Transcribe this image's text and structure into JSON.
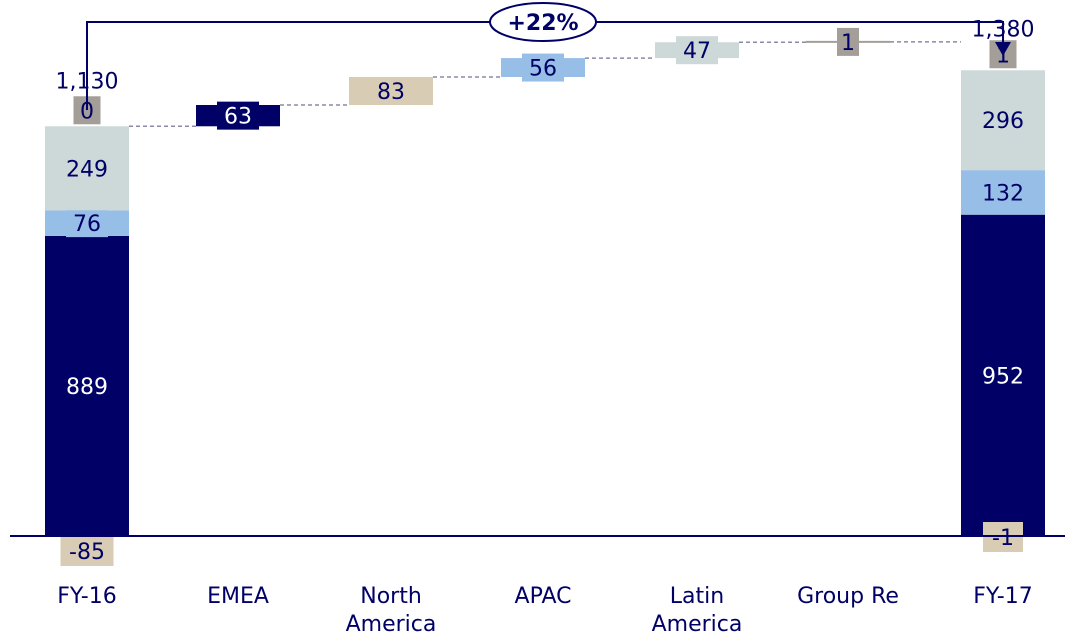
{
  "chart_data": {
    "type": "waterfall",
    "categories": [
      "FY-16",
      "EMEA",
      "North\nAmerica",
      "APAC",
      "Latin\nAmerica",
      "Group Re",
      "FY-17"
    ],
    "totals": {
      "FY-16": 1130,
      "FY-17": 1380
    },
    "total_labels": [
      "1,130",
      "1,380"
    ],
    "stacks": {
      "FY-16": [
        {
          "segment": "navy",
          "value": 889
        },
        {
          "segment": "lightblue",
          "value": 76
        },
        {
          "segment": "lightgrey",
          "value": 249
        },
        {
          "segment": "grey",
          "value": 0
        },
        {
          "segment": "beige",
          "value": -85
        }
      ],
      "FY-17": [
        {
          "segment": "navy",
          "value": 952
        },
        {
          "segment": "lightblue",
          "value": 132
        },
        {
          "segment": "lightgrey",
          "value": 296
        },
        {
          "segment": "grey",
          "value": 1
        },
        {
          "segment": "beige",
          "value": -1
        }
      ]
    },
    "steps": [
      {
        "category": "EMEA",
        "segment": "navy",
        "value": 63
      },
      {
        "category": "North\nAmerica",
        "segment": "beige",
        "value": 83
      },
      {
        "category": "APAC",
        "segment": "lightblue",
        "value": 56
      },
      {
        "category": "Latin\nAmerica",
        "segment": "lightgrey",
        "value": 47
      },
      {
        "category": "Group Re",
        "segment": "grey",
        "value": 1
      }
    ],
    "growth_label": "+22%",
    "colors": {
      "navy": "#000066",
      "lightblue": "#96bee6",
      "lightgrey": "#cdd8d8",
      "grey": "#a39e98",
      "beige": "#d8cdb4",
      "connector": "#8a8aa8"
    }
  }
}
